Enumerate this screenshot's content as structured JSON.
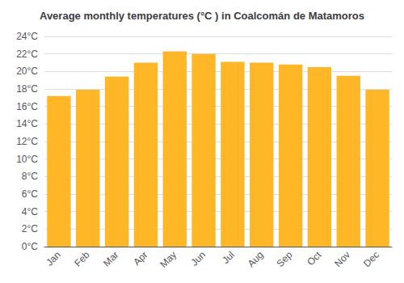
{
  "chart_data": {
    "type": "bar",
    "title": "Average monthly temperatures (°C ) in Coalcomán de Matamoros",
    "categories": [
      "Jan",
      "Feb",
      "Mar",
      "Apr",
      "May",
      "Jun",
      "Jul",
      "Aug",
      "Sep",
      "Oct",
      "Nov",
      "Dec"
    ],
    "values": [
      17.2,
      17.9,
      19.4,
      21.0,
      22.3,
      22.0,
      21.1,
      21.0,
      20.8,
      20.5,
      19.5,
      17.9
    ],
    "color": "#FFB627",
    "ylim": [
      0,
      24
    ],
    "yticks": [
      {
        "value": 0,
        "label": "0°C"
      },
      {
        "value": 2,
        "label": "2°C"
      },
      {
        "value": 4,
        "label": "4°C"
      },
      {
        "value": 6,
        "label": "6°C"
      },
      {
        "value": 8,
        "label": "8°C"
      },
      {
        "value": 10,
        "label": "10°C"
      },
      {
        "value": 12,
        "label": "12°C"
      },
      {
        "value": 14,
        "label": "14°C"
      },
      {
        "value": 16,
        "label": "16°C"
      },
      {
        "value": 18,
        "label": "18°C"
      },
      {
        "value": 20,
        "label": "20°C"
      },
      {
        "value": 22,
        "label": "22°C"
      },
      {
        "value": 24,
        "label": "24°C"
      }
    ],
    "grid": true
  }
}
